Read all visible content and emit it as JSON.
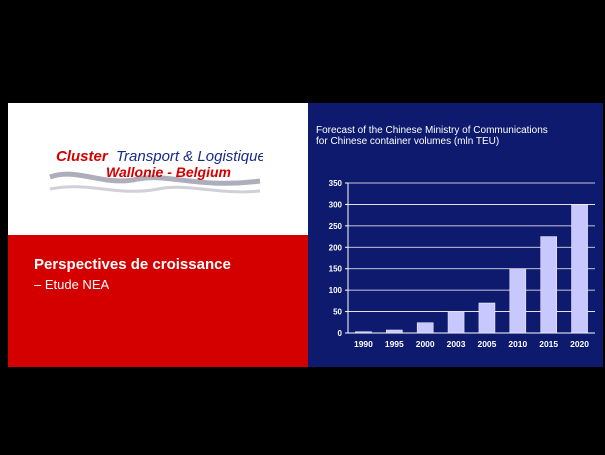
{
  "logo": {
    "line1_part1": "Cluster",
    "line1_part2": "Transport & Logistique",
    "line2": "Wallonie - Belgium"
  },
  "slide": {
    "title": "Perspectives de croissance",
    "subtitle": "– Etude NEA"
  },
  "chart_data": {
    "type": "bar",
    "title_line1": "Forecast of the Chinese Ministry of Communications",
    "title_line2": "for Chinese container volumes (mln TEU)",
    "categories": [
      "1990",
      "1995",
      "2000",
      "2003",
      "2005",
      "2010",
      "2015",
      "2020"
    ],
    "values": [
      3,
      7,
      24,
      50,
      70,
      150,
      225,
      300
    ],
    "yticks": [
      0,
      50,
      100,
      150,
      200,
      250,
      300,
      350
    ],
    "ylim": [
      0,
      350
    ],
    "grid": true,
    "bar_color": "#c8c8ff",
    "background": "#0d1a6e"
  }
}
